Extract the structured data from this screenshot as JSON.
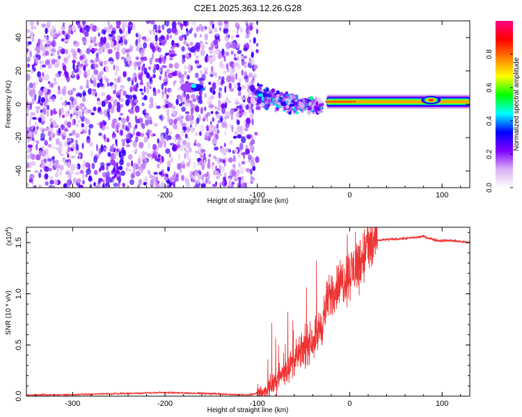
{
  "title": "C2E1.2025.363.12.26.G28",
  "chart_data": [
    {
      "type": "heatmap",
      "name": "spectrogram",
      "xlabel": "Height of straight line (km)",
      "ylabel": "Frequency (Hz)",
      "xlim": [
        -350,
        130
      ],
      "ylim": [
        -50,
        50
      ],
      "xticks": [
        -300,
        -200,
        -100,
        0,
        100
      ],
      "yticks": [
        -40,
        -20,
        0,
        20,
        40
      ],
      "colorbar": {
        "label": "Normalized spectral amplitude",
        "range": [
          0,
          1
        ],
        "ticks": [
          0.0,
          0.2,
          0.4,
          0.6,
          0.8
        ],
        "colormap": [
          "#ffffff",
          "#d8b0f4",
          "#8000ff",
          "#0000ff",
          "#00ffff",
          "#00ff00",
          "#ffff00",
          "#ff8000",
          "#ff0000",
          "#ff0080"
        ]
      },
      "features": {
        "noise_region_x": [
          -350,
          -100
        ],
        "tone_track": {
          "x": [
            -25,
            130
          ],
          "freq": 1.5,
          "amplitude": 0.75
        },
        "transition_cluster": {
          "x": [
            -100,
            -30
          ],
          "freq": [
            -12,
            10
          ],
          "amplitude": [
            0.3,
            0.5
          ]
        },
        "isolated_blob": {
          "x": -165,
          "freq": 10,
          "amplitude": 0.45
        },
        "peak_blob": {
          "x": 88,
          "freq": 2.5,
          "amplitude": 0.85
        }
      }
    },
    {
      "type": "line",
      "name": "snr",
      "xlabel": "Height of straight line (km)",
      "ylabel": "SNR (10 * v/v)",
      "scale_label": "(x10",
      "scale_exp": "4",
      "xlim": [
        -350,
        130
      ],
      "ylim": [
        0,
        1.65
      ],
      "xticks": [
        -300,
        -200,
        -100,
        0,
        100
      ],
      "yticks": [
        0.0,
        0.5,
        1.0,
        1.5
      ],
      "ytick_labels": [
        "0.0",
        "0.5",
        "1.0",
        "1.5"
      ],
      "color": "#ee3333",
      "series": [
        {
          "name": "SNR",
          "x": [
            -350,
            -300,
            -250,
            -200,
            -150,
            -110,
            -90,
            -80,
            -70,
            -60,
            -50,
            -40,
            -30,
            -25,
            -20,
            -10,
            0,
            10,
            20,
            30,
            40,
            60,
            80,
            95,
            110,
            130
          ],
          "y": [
            0.01,
            0.015,
            0.025,
            0.035,
            0.025,
            0.01,
            0.05,
            0.15,
            0.25,
            0.35,
            0.45,
            0.55,
            0.7,
            0.9,
            1.0,
            1.1,
            1.2,
            1.3,
            1.45,
            1.52,
            1.53,
            1.54,
            1.56,
            1.52,
            1.52,
            1.5
          ]
        }
      ]
    }
  ]
}
